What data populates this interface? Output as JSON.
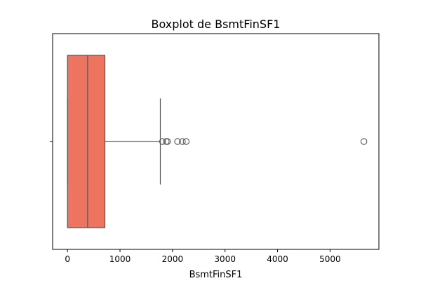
{
  "chart_data": {
    "type": "boxplot",
    "title": "Boxplot de BsmtFinSF1",
    "xlabel": "BsmtFinSF1",
    "ylabel": "",
    "orientation": "horizontal",
    "xlim": [
      -283,
      5930
    ],
    "x_ticks": [
      0,
      1000,
      2000,
      3000,
      4000,
      5000
    ],
    "x_tick_labels": [
      "0",
      "1000",
      "2000",
      "3000",
      "4000",
      "5000"
    ],
    "y_ticks": [
      0
    ],
    "grid": false,
    "legend": "none",
    "box_color": "#ed7560",
    "line_color": "#555555",
    "stats": {
      "whisker_low": 0,
      "q1": 0,
      "median": 384,
      "q3": 712,
      "whisker_high": 1768
    },
    "outliers": [
      1810,
      1880,
      1904,
      2096,
      2188,
      2260,
      5644
    ]
  }
}
